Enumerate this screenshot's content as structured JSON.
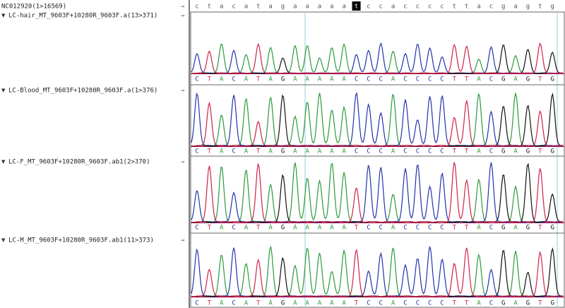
{
  "reference": {
    "label": "NC012920(1>16569)",
    "bases": [
      "c",
      "t",
      "a",
      "c",
      "a",
      "t",
      "a",
      "g",
      "a",
      "a",
      "a",
      "a",
      "a",
      "t",
      "c",
      "c",
      "a",
      "c",
      "c",
      "c",
      "c",
      "t",
      "t",
      "a",
      "c",
      "g",
      "a",
      "g",
      "t",
      "g"
    ],
    "highlight_index": 13
  },
  "tracks": [
    {
      "label": "LC-hair_MT_9603F+10280R_9603F.a(13>371)",
      "bases": [
        "C",
        "T",
        "A",
        "C",
        "A",
        "T",
        "A",
        "G",
        "A",
        "A",
        "A",
        "A",
        "A",
        "C",
        "C",
        "C",
        "A",
        "C",
        "C",
        "C",
        "C",
        "T",
        "T",
        "A",
        "C",
        "G",
        "A",
        "G",
        "T",
        "G"
      ]
    },
    {
      "label": "LC-Blood_MT_9603F+10280R_9603F.a(1>376)",
      "bases": [
        "C",
        "T",
        "A",
        "C",
        "A",
        "T",
        "A",
        "G",
        "A",
        "A",
        "A",
        "A",
        "A",
        "C",
        "C",
        "C",
        "A",
        "C",
        "C",
        "C",
        "C",
        "T",
        "T",
        "A",
        "C",
        "G",
        "A",
        "G",
        "T",
        "G"
      ]
    },
    {
      "label": "LC-F_MT_9603F+10280R_9603F.ab1(2>370)",
      "bases": [
        "C",
        "T",
        "A",
        "C",
        "A",
        "T",
        "A",
        "G",
        "A",
        "A",
        "A",
        "A",
        "A",
        "T",
        "C",
        "C",
        "A",
        "C",
        "C",
        "C",
        "C",
        "T",
        "T",
        "A",
        "C",
        "G",
        "A",
        "G",
        "T",
        "G"
      ]
    },
    {
      "label": "LC-M_MT_9603F+10280R_9603F.ab1(11>373)",
      "bases": [
        "C",
        "T",
        "A",
        "C",
        "A",
        "T",
        "A",
        "G",
        "A",
        "A",
        "A",
        "A",
        "A",
        "T",
        "C",
        "C",
        "A",
        "C",
        "C",
        "C",
        "C",
        "T",
        "T",
        "A",
        "C",
        "G",
        "A",
        "G",
        "T",
        "G"
      ]
    }
  ]
}
